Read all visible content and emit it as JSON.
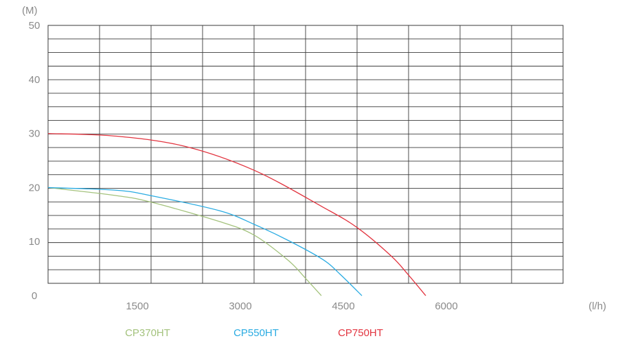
{
  "chart_data": {
    "type": "line",
    "title": "",
    "ylabel": "(M)",
    "xlabel": "(l/h)",
    "ylim": [
      0,
      50
    ],
    "y_ticks": [
      "0",
      "10",
      "20",
      "30",
      "40",
      "50"
    ],
    "x_ticks": [
      {
        "value": 1500,
        "label": "1500"
      },
      {
        "value": 3000,
        "label": "3000"
      },
      {
        "value": 4500,
        "label": "4500"
      },
      {
        "value": 6000,
        "label": "6000"
      }
    ],
    "grid": true,
    "legend_position": "bottom",
    "series": [
      {
        "name": "CP370HT",
        "color": "#a3c27c",
        "points": [
          [
            0,
            20
          ],
          [
            1000,
            18.5
          ],
          [
            1500,
            17.3
          ],
          [
            2500,
            13.7
          ],
          [
            3000,
            11.2
          ],
          [
            3500,
            6.5
          ],
          [
            3750,
            3.2
          ],
          [
            3980,
            0
          ]
        ]
      },
      {
        "name": "CP550HT",
        "color": "#29abe2",
        "points": [
          [
            0,
            20
          ],
          [
            1000,
            19.5
          ],
          [
            1500,
            18.5
          ],
          [
            2500,
            15.7
          ],
          [
            3000,
            13.2
          ],
          [
            3500,
            10.2
          ],
          [
            4000,
            6.7
          ],
          [
            4250,
            4
          ],
          [
            4570,
            0
          ]
        ]
      },
      {
        "name": "CP750HT",
        "color": "#e2343f",
        "points": [
          [
            0,
            30
          ],
          [
            1000,
            29.5
          ],
          [
            2000,
            27.6
          ],
          [
            3000,
            23.2
          ],
          [
            4000,
            16.4
          ],
          [
            4500,
            12.6
          ],
          [
            5000,
            7.3
          ],
          [
            5250,
            3.8
          ],
          [
            5500,
            0
          ]
        ]
      }
    ]
  }
}
